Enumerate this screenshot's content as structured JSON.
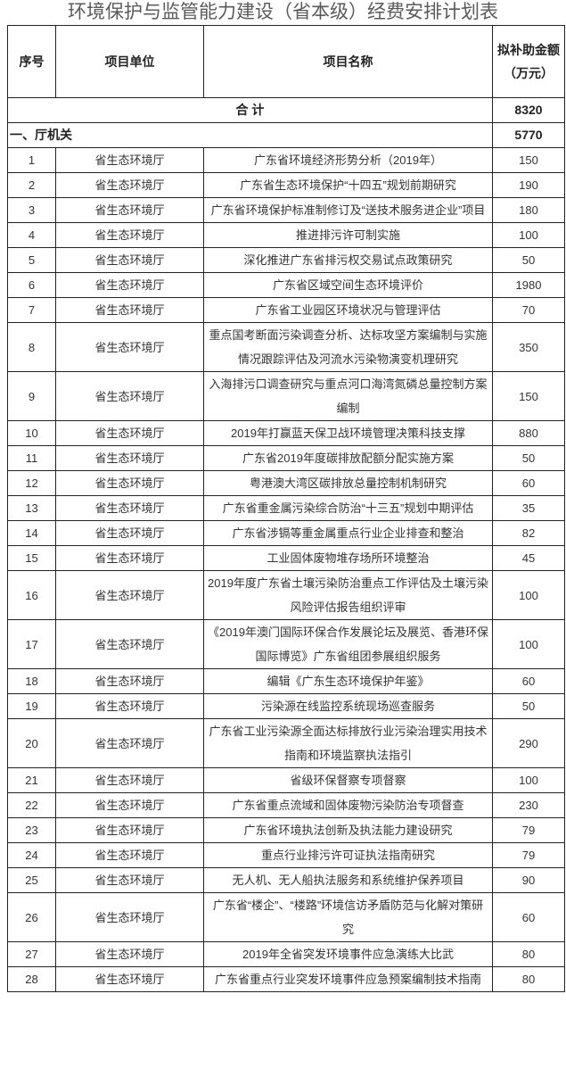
{
  "title": "环境保护与监管能力建设（省本级）经费安排计划表",
  "headers": {
    "no": "序号",
    "unit": "项目单位",
    "name": "项目名称",
    "amount": "拟补助金额（万元）"
  },
  "total": {
    "label": "合 计",
    "amount": "8320"
  },
  "section": {
    "label": "一、厅机关",
    "amount": "5770"
  },
  "rows": [
    {
      "no": "1",
      "unit": "省生态环境厅",
      "name": "广东省环境经济形势分析（2019年）",
      "amount": "150"
    },
    {
      "no": "2",
      "unit": "省生态环境厅",
      "name": "广东省生态环境保护“十四五”规划前期研究",
      "amount": "190"
    },
    {
      "no": "3",
      "unit": "省生态环境厅",
      "name": "广东省环境保护标准制修订及“送技术服务进企业”项目",
      "amount": "180"
    },
    {
      "no": "4",
      "unit": "省生态环境厅",
      "name": "推进排污许可制实施",
      "amount": "100"
    },
    {
      "no": "5",
      "unit": "省生态环境厅",
      "name": "深化推进广东省排污权交易试点政策研究",
      "amount": "50"
    },
    {
      "no": "6",
      "unit": "省生态环境厅",
      "name": "广东省区域空间生态环境评价",
      "amount": "1980"
    },
    {
      "no": "7",
      "unit": "省生态环境厅",
      "name": "广东省工业园区环境状况与管理评估",
      "amount": "70"
    },
    {
      "no": "8",
      "unit": "省生态环境厅",
      "name": "重点国考断面污染调查分析、达标攻坚方案编制与实施情况跟踪评估及河流水污染物演变机理研究",
      "amount": "350"
    },
    {
      "no": "9",
      "unit": "省生态环境厅",
      "name": "入海排污口调查研究与重点河口海湾氮磷总量控制方案编制",
      "amount": "150"
    },
    {
      "no": "10",
      "unit": "省生态环境厅",
      "name": "2019年打赢蓝天保卫战环境管理决策科技支撑",
      "amount": "880"
    },
    {
      "no": "11",
      "unit": "省生态环境厅",
      "name": "广东省2019年度碳排放配额分配实施方案",
      "amount": "50"
    },
    {
      "no": "12",
      "unit": "省生态环境厅",
      "name": "粤港澳大湾区碳排放总量控制机制研究",
      "amount": "60"
    },
    {
      "no": "13",
      "unit": "省生态环境厅",
      "name": "广东省重金属污染综合防治“十三五”规划中期评估",
      "amount": "35"
    },
    {
      "no": "14",
      "unit": "省生态环境厅",
      "name": "广东省涉镉等重金属重点行业企业排查和整治",
      "amount": "82"
    },
    {
      "no": "15",
      "unit": "省生态环境厅",
      "name": "工业固体废物堆存场所环境整治",
      "amount": "45"
    },
    {
      "no": "16",
      "unit": "省生态环境厅",
      "name": "2019年度广东省土壤污染防治重点工作评估及土壤污染风险评估报告组织评审",
      "amount": "100"
    },
    {
      "no": "17",
      "unit": "省生态环境厅",
      "name": "《2019年澳门国际环保合作发展论坛及展览、香港环保国际博览》广东省组团参展组织服务",
      "amount": "100"
    },
    {
      "no": "18",
      "unit": "省生态环境厅",
      "name": "编辑《广东生态环境保护年鉴》",
      "amount": "60"
    },
    {
      "no": "19",
      "unit": "省生态环境厅",
      "name": "污染源在线监控系统现场巡查服务",
      "amount": "50"
    },
    {
      "no": "20",
      "unit": "省生态环境厅",
      "name": "广东省工业污染源全面达标排放行业污染治理实用技术指南和环境监察执法指引",
      "amount": "290"
    },
    {
      "no": "21",
      "unit": "省生态环境厅",
      "name": "省级环保督察专项督察",
      "amount": "100"
    },
    {
      "no": "22",
      "unit": "省生态环境厅",
      "name": "广东省重点流域和固体废物污染防治专项督查",
      "amount": "230"
    },
    {
      "no": "23",
      "unit": "省生态环境厅",
      "name": "广东省环境执法创新及执法能力建设研究",
      "amount": "79"
    },
    {
      "no": "24",
      "unit": "省生态环境厅",
      "name": "重点行业排污许可证执法指南研究",
      "amount": "79"
    },
    {
      "no": "25",
      "unit": "省生态环境厅",
      "name": "无人机、无人船执法服务和系统维护保养项目",
      "amount": "90"
    },
    {
      "no": "26",
      "unit": "省生态环境厅",
      "name": "广东省“楼企”、“楼路”环境信访矛盾防范与化解对策研究",
      "amount": "60"
    },
    {
      "no": "27",
      "unit": "省生态环境厅",
      "name": "2019年全省突发环境事件应急演练大比武",
      "amount": "80"
    },
    {
      "no": "28",
      "unit": "省生态环境厅",
      "name": "广东省重点行业突发环境事件应急预案编制技术指南",
      "amount": "80"
    }
  ]
}
